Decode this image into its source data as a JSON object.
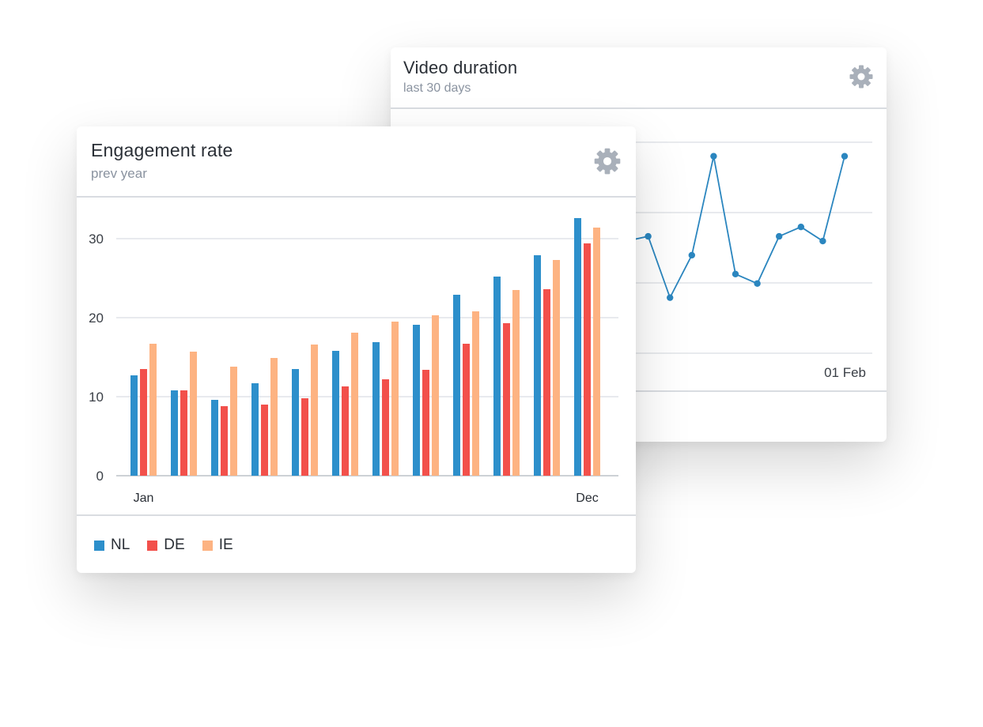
{
  "video_card": {
    "title": "Video duration",
    "subtitle": "last 30 days",
    "settings_icon": "gear-icon",
    "x_label_last": "01 Feb",
    "line_color": "#2b86bf"
  },
  "engagement_card": {
    "title": "Engagement rate",
    "subtitle": "prev year",
    "settings_icon": "gear-icon",
    "legend": [
      {
        "label": "NL",
        "color": "#2d8fcb"
      },
      {
        "label": "DE",
        "color": "#f2504b"
      },
      {
        "label": "IE",
        "color": "#fdb382"
      }
    ]
  },
  "chart_data": [
    {
      "type": "bar",
      "title": "Engagement rate",
      "subtitle": "prev year",
      "categories": [
        "Jan",
        "",
        "",
        "",
        "",
        "",
        "",
        "",
        "",
        "",
        "",
        "Dec"
      ],
      "series": [
        {
          "name": "NL",
          "values": [
            12.7,
            10.8,
            9.6,
            11.7,
            13.5,
            15.8,
            16.9,
            19.1,
            22.9,
            25.2,
            27.9,
            32.6
          ]
        },
        {
          "name": "DE",
          "values": [
            13.5,
            10.8,
            8.8,
            9.0,
            9.8,
            11.3,
            12.2,
            13.4,
            16.7,
            19.3,
            23.6,
            29.4
          ]
        },
        {
          "name": "IE",
          "values": [
            16.7,
            15.7,
            13.8,
            14.9,
            16.6,
            18.1,
            19.5,
            20.3,
            20.8,
            23.5,
            27.3,
            31.4
          ]
        }
      ],
      "yticks": [
        0,
        10,
        20,
        30
      ],
      "ylim": [
        0,
        34
      ],
      "grid": true,
      "legend": "bottom-left"
    },
    {
      "type": "line",
      "title": "Video duration",
      "subtitle": "last 30 days",
      "x_tick_labels_visible": [
        "01 Feb"
      ],
      "series": [
        {
          "name": "",
          "values": [
            62,
            63,
            50,
            59,
            80,
            55,
            53,
            63,
            65,
            62,
            80
          ]
        }
      ],
      "ylim": [
        30,
        90
      ],
      "grid": true
    }
  ]
}
